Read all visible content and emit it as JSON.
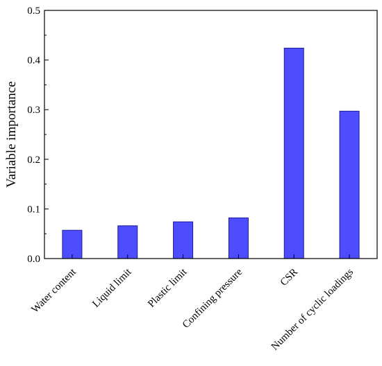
{
  "chart_data": {
    "type": "bar",
    "categories": [
      "Water content",
      "Liquid limit",
      "Plastic limit",
      "Confining pressure",
      "CSR",
      "Number of cyclic loadings"
    ],
    "values": [
      0.057,
      0.066,
      0.074,
      0.082,
      0.424,
      0.297
    ],
    "ylabel": "Variable importance",
    "xlabel": "",
    "ylim": [
      0,
      0.5
    ],
    "yticks": [
      "0.0",
      "0.1",
      "0.2",
      "0.3",
      "0.4",
      "0.5"
    ],
    "grid": false,
    "bar_color": "#4d4dff",
    "bar_edge_color": "#1a1a99"
  }
}
